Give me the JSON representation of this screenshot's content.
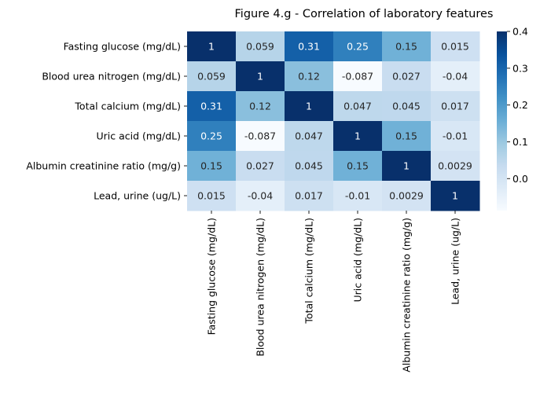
{
  "chart_data": {
    "type": "heatmap",
    "title": "Figure 4.g - Correlation of laboratory features",
    "rows": [
      "Fasting glucose (mg/dL)",
      "Blood urea nitrogen (mg/dL)",
      "Total calcium (mg/dL)",
      "Uric acid (mg/dL)",
      "Albumin creatinine ratio (mg/g)",
      "Lead, urine (ug/L)"
    ],
    "columns": [
      "Fasting glucose (mg/dL)",
      "Blood urea nitrogen (mg/dL)",
      "Total calcium (mg/dL)",
      "Uric acid (mg/dL)",
      "Albumin creatinine ratio (mg/g)",
      "Lead, urine (ug/L)"
    ],
    "values": [
      [
        1,
        0.059,
        0.31,
        0.25,
        0.15,
        0.015
      ],
      [
        0.059,
        1,
        0.12,
        -0.087,
        0.027,
        -0.04
      ],
      [
        0.31,
        0.12,
        1,
        0.047,
        0.045,
        0.017
      ],
      [
        0.25,
        -0.087,
        0.047,
        1,
        0.15,
        -0.01
      ],
      [
        0.15,
        0.027,
        0.045,
        0.15,
        1,
        0.0029
      ],
      [
        0.015,
        -0.04,
        0.017,
        -0.01,
        0.0029,
        1
      ]
    ],
    "cell_labels": [
      [
        "1",
        "0.059",
        "0.31",
        "0.25",
        "0.15",
        "0.015"
      ],
      [
        "0.059",
        "1",
        "0.12",
        "-0.087",
        "0.027",
        "-0.04"
      ],
      [
        "0.31",
        "0.12",
        "1",
        "0.047",
        "0.045",
        "0.017"
      ],
      [
        "0.25",
        "-0.087",
        "0.047",
        "1",
        "0.15",
        "-0.01"
      ],
      [
        "0.15",
        "0.027",
        "0.045",
        "0.15",
        "1",
        "0.0029"
      ],
      [
        "0.015",
        "-0.04",
        "0.017",
        "-0.01",
        "0.0029",
        "1"
      ]
    ],
    "colormap": "Blues",
    "vmin": -0.087,
    "vmax": 0.4,
    "colorbar_ticks": [
      0.0,
      0.1,
      0.2,
      0.3,
      0.4
    ],
    "colorbar_tick_labels": [
      "0.0",
      "0.1",
      "0.2",
      "0.3",
      "0.4"
    ],
    "grid": false
  }
}
